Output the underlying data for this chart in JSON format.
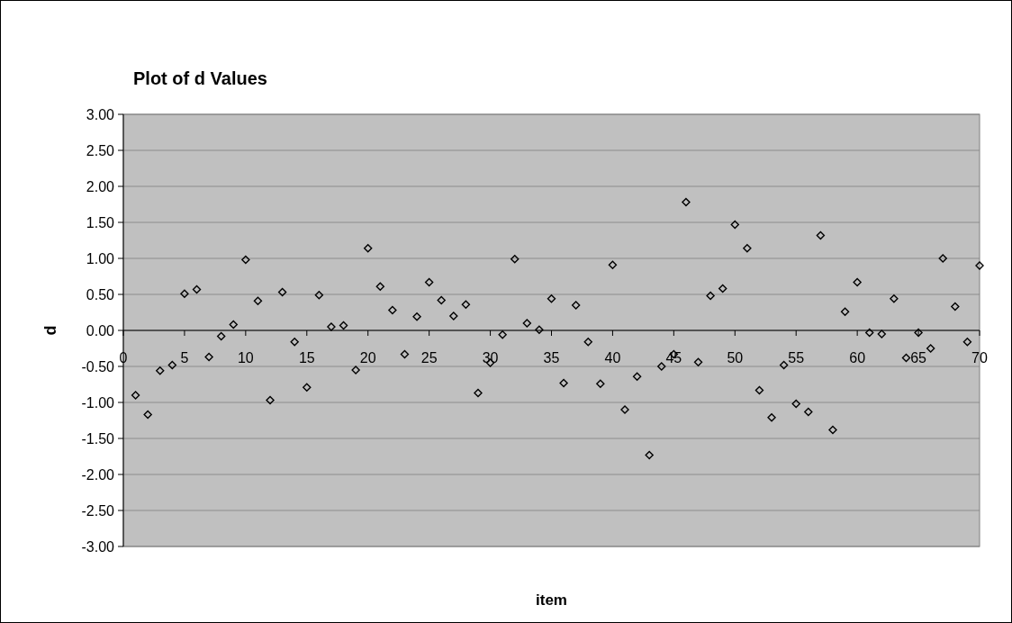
{
  "chart_data": {
    "type": "scatter",
    "title": "Plot of d Values",
    "xlabel": "item",
    "ylabel": "d",
    "x": [
      1,
      2,
      3,
      4,
      5,
      6,
      7,
      8,
      9,
      10,
      11,
      12,
      13,
      14,
      15,
      16,
      17,
      18,
      19,
      20,
      21,
      22,
      23,
      24,
      25,
      26,
      27,
      28,
      29,
      30,
      31,
      32,
      33,
      34,
      35,
      36,
      37,
      38,
      39,
      40,
      41,
      42,
      43,
      44,
      45,
      46,
      47,
      48,
      49,
      50,
      51,
      52,
      53,
      54,
      55,
      56,
      57,
      58,
      59,
      60,
      61,
      62,
      63,
      64,
      65,
      66,
      67,
      68,
      69,
      70
    ],
    "series": [
      {
        "color": "#000000",
        "values": [
          -0.9,
          -1.17,
          -0.56,
          -0.48,
          0.51,
          0.57,
          -0.37,
          -0.08,
          0.08,
          0.98,
          0.41,
          -0.97,
          0.53,
          -0.16,
          -0.79,
          0.49,
          0.05,
          0.07,
          -0.55,
          1.14,
          0.61,
          0.28,
          -0.33,
          0.19,
          0.67,
          0.42,
          0.2,
          0.36,
          -0.87,
          -0.45,
          -0.06,
          0.99,
          0.1,
          0.01,
          0.44,
          -0.73,
          0.35,
          -0.16,
          -0.74,
          0.91,
          -1.1,
          -0.64,
          -1.73,
          -0.5,
          -0.33,
          1.78,
          -0.44,
          0.48,
          0.58,
          1.47,
          1.14,
          -0.83,
          -1.21,
          -0.48,
          -1.02,
          -1.13,
          1.32,
          -1.38,
          0.26,
          0.67,
          -0.03,
          -0.05,
          0.44,
          -0.38,
          -0.03,
          -0.25,
          1.0,
          0.33,
          -0.16,
          0.9
        ]
      }
    ],
    "xlim": [
      0,
      70
    ],
    "xticks": [
      0,
      5,
      10,
      15,
      20,
      25,
      30,
      35,
      40,
      45,
      50,
      55,
      60,
      65,
      70
    ],
    "ylim": [
      -3,
      3
    ],
    "yticks": [
      {
        "value": -3,
        "label": "-3.00"
      },
      {
        "value": -2.5,
        "label": "-2.50"
      },
      {
        "value": -2,
        "label": "-2.00"
      },
      {
        "value": -1.5,
        "label": "-1.50"
      },
      {
        "value": -1,
        "label": "-1.00"
      },
      {
        "value": -0.5,
        "label": "-0.50"
      },
      {
        "value": 0,
        "label": "0.00"
      },
      {
        "value": 0.5,
        "label": "0.50"
      },
      {
        "value": 1,
        "label": "1.00"
      },
      {
        "value": 1.5,
        "label": "1.50"
      },
      {
        "value": 2,
        "label": "2.00"
      },
      {
        "value": 2.5,
        "label": "2.50"
      },
      {
        "value": 3,
        "label": "3.00"
      }
    ],
    "grid": "y",
    "marker": "diamond"
  }
}
